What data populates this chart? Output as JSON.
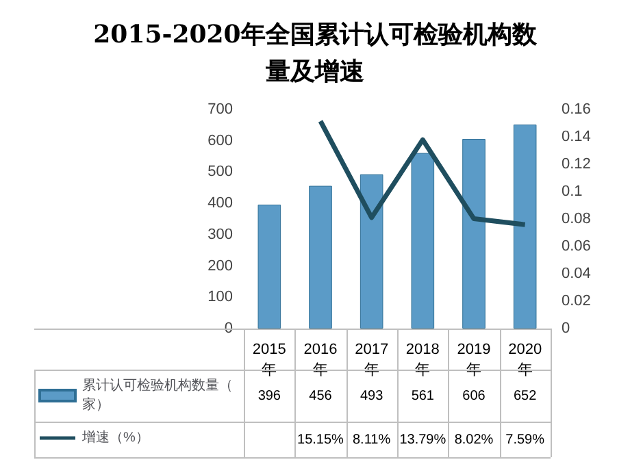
{
  "chart_data": {
    "type": "bar",
    "title": "2015-2020年全国累计认可检验机构数量及增速",
    "categories": [
      "2015年",
      "2016年",
      "2017年",
      "2018年",
      "2019年",
      "2020年"
    ],
    "series": [
      {
        "name": "累计认可检验机构数量（家）",
        "color": "#5b9bc7",
        "values": [
          396,
          456,
          493,
          561,
          606,
          652
        ],
        "value_labels": [
          "396",
          "456",
          "493",
          "561",
          "606",
          "652"
        ]
      },
      {
        "name": "增速（%）",
        "type": "line",
        "axis": "y2",
        "color": "#1f4e5f",
        "values": [
          null,
          0.1515,
          0.0811,
          0.1379,
          0.0802,
          0.0759
        ],
        "value_labels": [
          null,
          "15.15%",
          "8.11%",
          "13.79%",
          "8.02%",
          "7.59%"
        ]
      }
    ],
    "ylim": [
      0,
      700
    ],
    "yticks": [
      0,
      100,
      200,
      300,
      400,
      500,
      600,
      700
    ],
    "y2lim": [
      0,
      0.16
    ],
    "y2ticks": [
      0,
      0.02,
      0.04,
      0.06,
      0.08,
      0.1,
      0.12,
      0.14,
      0.16
    ],
    "legend": "bottom left",
    "grid": false,
    "marker": "none"
  }
}
